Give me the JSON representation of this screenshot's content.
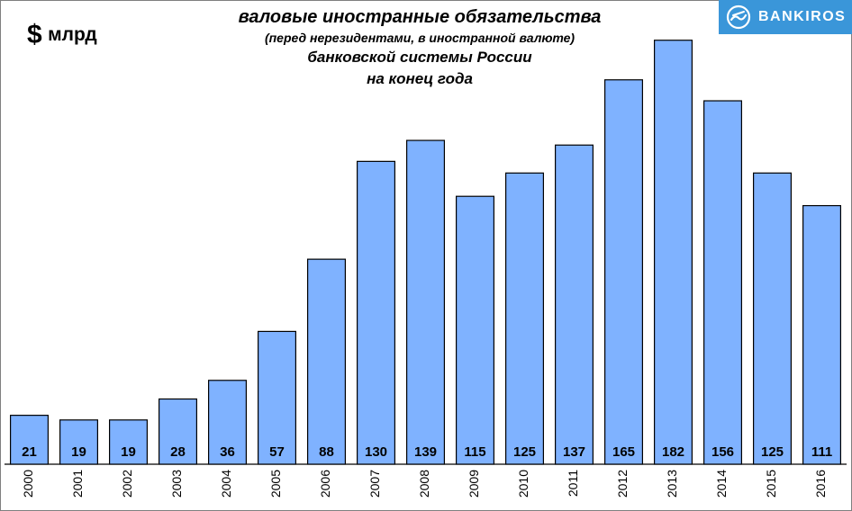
{
  "unit": {
    "symbol": "$",
    "text": "млрд"
  },
  "title": {
    "line1": "валовые иностранные обязательства",
    "line2": "(перед нерезидентами, в иностранной валюте)",
    "line3": "банковской  системы России",
    "line4": "на конец года"
  },
  "brand": {
    "name": "BANKIROS",
    "icon": "bankiros-logo-icon",
    "color": "#3a96d9"
  },
  "colors": {
    "bar_fill": "#7fb2ff",
    "bar_stroke": "#000000",
    "background": "#ffffff"
  },
  "chart_data": {
    "type": "bar",
    "title": "валовые иностранные обязательства (перед нерезидентами, в иностранной валюте) банковской  системы России на конец года",
    "ylabel": "$ млрд",
    "xlabel": "",
    "ylim": [
      0,
      190
    ],
    "grid": false,
    "categories": [
      "2000",
      "2001",
      "2002",
      "2003",
      "2004",
      "2005",
      "2006",
      "2007",
      "2008",
      "2009",
      "2010",
      "2011",
      "2012",
      "2013",
      "2014",
      "2015",
      "2016"
    ],
    "values": [
      21,
      19,
      19,
      28,
      36,
      57,
      88,
      130,
      139,
      115,
      125,
      137,
      165,
      182,
      156,
      125,
      111
    ],
    "data_labels": [
      "21",
      "19",
      "19",
      "28",
      "36",
      "57",
      "88",
      "130",
      "139",
      "115",
      "125",
      "137",
      "165",
      "182",
      "156",
      "125",
      "111"
    ]
  }
}
